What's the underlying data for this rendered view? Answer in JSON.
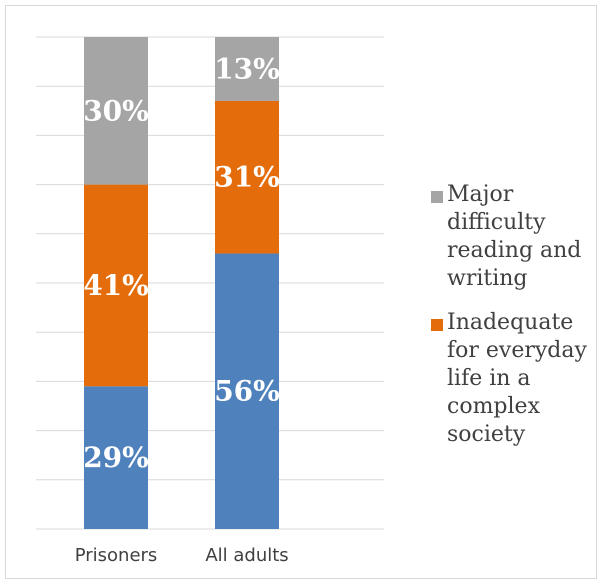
{
  "chart_data": {
    "type": "stacked-bar",
    "categories": [
      "Prisoners",
      "All adults"
    ],
    "series": [
      {
        "name": "",
        "color": "#4f81bd",
        "values": [
          29,
          56
        ]
      },
      {
        "name": "Inadequate for everyday life in a complex society",
        "color": "#e46c0a",
        "values": [
          41,
          31
        ]
      },
      {
        "name": "Major difficulty reading and writing",
        "color": "#a5a5a5",
        "values": [
          30,
          13
        ]
      }
    ],
    "value_suffix": "%",
    "ylim": [
      0,
      100
    ],
    "grid": true,
    "legend_position": "right",
    "legend_order": [
      "Major difficulty reading and writing",
      "Inadequate for everyday life in a complex society"
    ]
  }
}
